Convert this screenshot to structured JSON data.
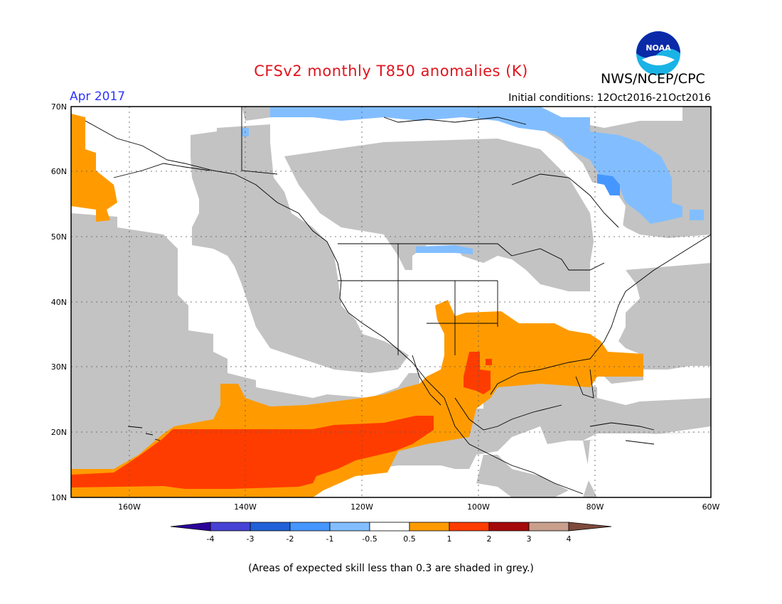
{
  "header": {
    "title": "CFSv2 monthly T850 anomalies (K)",
    "agency": "NWS/NCEP/CPC",
    "logo_text": "NOAA",
    "forecast_month": "Apr 2017",
    "initial_conditions": "Initial conditions: 12Oct2016-21Oct2016"
  },
  "map": {
    "lat_labels": [
      "10N",
      "20N",
      "30N",
      "40N",
      "50N",
      "60N",
      "70N"
    ],
    "lon_labels": [
      "160W",
      "140W",
      "120W",
      "100W",
      "80W",
      "60W"
    ],
    "colors": {
      "low_skill": "#c3c3c3",
      "light_blue": "#82beff",
      "mid_blue": "#4696ff",
      "orange": "#ff9b00",
      "red_orange": "#ff3c00",
      "land_outline": "#000000"
    }
  },
  "colorbar": {
    "tick_labels": [
      "-4",
      "-3",
      "-2",
      "-1",
      "-0.5",
      "0.5",
      "1",
      "2",
      "3",
      "4"
    ],
    "colors": [
      "#2b0399",
      "#4642d4",
      "#2160d7",
      "#4696ff",
      "#82beff",
      "#ffffff",
      "#ff9b00",
      "#ff3c00",
      "#a50a0a",
      "#c8a08c",
      "#7d4b3c"
    ]
  },
  "footer": {
    "note": "(Areas of expected skill less than 0.3 are shaded in grey.)"
  }
}
